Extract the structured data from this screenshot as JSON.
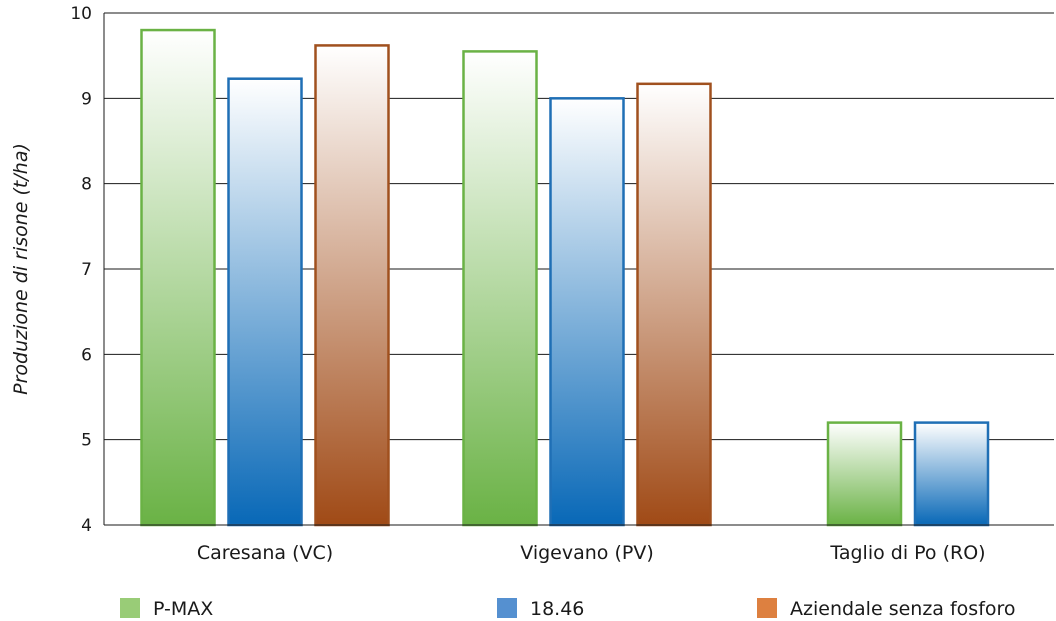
{
  "chart_data": {
    "type": "bar",
    "title": "",
    "ylabel": "Produzione di risone (t/ha)",
    "xlabel": "",
    "ylim": [
      4,
      10
    ],
    "yticks": [
      4,
      5,
      6,
      7,
      8,
      9,
      10
    ],
    "grid": "horizontal",
    "legend_position": "bottom",
    "categories": [
      "Caresana (VC)",
      "Vigevano (PV)",
      "Taglio di Po (RO)"
    ],
    "series": [
      {
        "name": "P-MAX",
        "values": [
          9.8,
          9.55,
          5.2
        ],
        "stroke": "#6ab245",
        "fill_dark": "#6ab245",
        "fill_light": "#ffffff",
        "legend_color": "#99cc77"
      },
      {
        "name": "18.46",
        "values": [
          9.23,
          9.0,
          5.2
        ],
        "stroke": "#1f6fb5",
        "fill_dark": "#0868b7",
        "fill_light": "#ffffff",
        "legend_color": "#5590d0"
      },
      {
        "name": "Aziendale senza fosforo",
        "values": [
          9.62,
          9.17,
          null
        ],
        "stroke": "#a0501e",
        "fill_dark": "#a04a16",
        "fill_light": "#ffffff",
        "legend_color": "#dd8040"
      }
    ]
  }
}
